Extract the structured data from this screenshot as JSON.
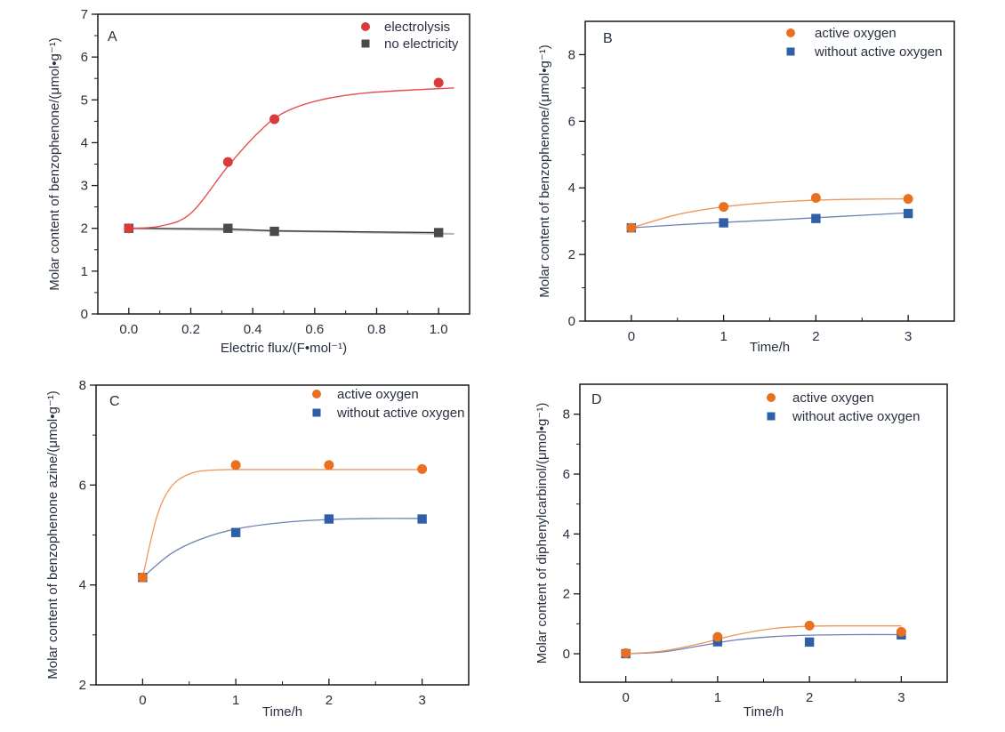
{
  "page": {
    "background": "#ffffff"
  },
  "colors": {
    "frame": "#1a1a1a",
    "text": "#27303f",
    "red": "#d93a3a",
    "red_line": "#e25050",
    "dark_gray": "#4a4a4a",
    "gray_fit_line": "#b6b6b6",
    "gray_connect_line": "#2d2d2d",
    "orange": "#e8701f",
    "orange_line": "#ef9659",
    "blue": "#2f5fa7",
    "blue_line": "#6d83b6"
  },
  "chart_data": [
    {
      "id": "A",
      "type": "scatter",
      "panel_label": "A",
      "xlabel": "Electric flux/(F•mol⁻¹)",
      "ylabel": "Molar content of benzophenone/(μmol•g⁻¹)",
      "xlim": [
        -0.1,
        1.1
      ],
      "ylim": [
        0,
        7
      ],
      "grid": false,
      "legend_position": "top-right-inside",
      "xticks": {
        "values": [
          0,
          0.2,
          0.4,
          0.6,
          0.8,
          1.0
        ],
        "labels": [
          "0.0",
          "0.2",
          "0.4",
          "0.6",
          "0.8",
          "1.0"
        ],
        "minor_step": 0.1
      },
      "yticks": {
        "values": [
          0,
          1,
          2,
          3,
          4,
          5,
          6,
          7
        ],
        "labels": [
          "0",
          "1",
          "2",
          "3",
          "4",
          "5",
          "6",
          "7"
        ],
        "minor_step": 0.5
      },
      "series": [
        {
          "name": "no electricity",
          "marker": "square",
          "color": "#4a4a4a",
          "x": [
            0,
            0.32,
            0.47,
            1.0
          ],
          "y": [
            2.0,
            2.0,
            1.93,
            1.9
          ],
          "lines": [
            {
              "color": "#b6b6b6",
              "width": 2.2,
              "smooth": false,
              "points": [
                [
                  0,
                  2.0
                ],
                [
                  1.05,
                  1.87
                ]
              ]
            },
            {
              "color": "#2d2d2d",
              "width": 1.2,
              "smooth": false,
              "points": [
                [
                  0,
                  2.0
                ],
                [
                  0.32,
                  1.99
                ],
                [
                  0.47,
                  1.94
                ],
                [
                  1.0,
                  1.9
                ]
              ]
            }
          ]
        },
        {
          "name": "electrolysis",
          "marker": "circle",
          "color": "#d93a3a",
          "x": [
            0,
            0.32,
            0.47,
            1.0
          ],
          "y": [
            2.0,
            3.55,
            4.55,
            5.4
          ],
          "lines": [
            {
              "color": "#e25050",
              "width": 1.4,
              "smooth": true,
              "points": [
                [
                  0,
                  2.0
                ],
                [
                  0.1,
                  2.05
                ],
                [
                  0.2,
                  2.35
                ],
                [
                  0.32,
                  3.45
                ],
                [
                  0.42,
                  4.25
                ],
                [
                  0.5,
                  4.7
                ],
                [
                  0.62,
                  5.0
                ],
                [
                  0.78,
                  5.17
                ],
                [
                  1.05,
                  5.28
                ]
              ]
            }
          ]
        }
      ],
      "legend": [
        {
          "label": "electrolysis",
          "marker": "circle",
          "color": "#d93a3a"
        },
        {
          "label": "no electricity",
          "marker": "square",
          "color": "#4a4a4a"
        }
      ]
    },
    {
      "id": "B",
      "type": "scatter",
      "panel_label": "B",
      "xlabel": "Time/h",
      "ylabel": "Molar content of benzophenone/(μmol•g⁻¹)",
      "xlim": [
        -0.5,
        3.5
      ],
      "ylim": [
        0,
        9
      ],
      "grid": false,
      "legend_position": "top-right-inside",
      "xticks": {
        "values": [
          0,
          1,
          2,
          3
        ],
        "labels": [
          "0",
          "1",
          "2",
          "3"
        ],
        "minor_step": 0.5
      },
      "yticks": {
        "values": [
          0,
          2,
          4,
          6,
          8
        ],
        "labels": [
          "0",
          "2",
          "4",
          "6",
          "8"
        ],
        "minor_step": 1
      },
      "series": [
        {
          "name": "without active oxygen",
          "marker": "square",
          "color": "#2f5fa7",
          "x": [
            0,
            1,
            2,
            3
          ],
          "y": [
            2.8,
            2.95,
            3.08,
            3.23
          ],
          "lines": [
            {
              "color": "#6d83b6",
              "width": 1.3,
              "smooth": true,
              "points": [
                [
                  0,
                  2.8
                ],
                [
                  0.75,
                  2.93
                ],
                [
                  1.5,
                  3.03
                ],
                [
                  2.25,
                  3.14
                ],
                [
                  3,
                  3.25
                ]
              ]
            }
          ]
        },
        {
          "name": "active oxygen",
          "marker": "circle",
          "color": "#e8701f",
          "x": [
            0,
            1,
            2,
            3
          ],
          "y": [
            2.8,
            3.43,
            3.7,
            3.67
          ],
          "lines": [
            {
              "color": "#ef9659",
              "width": 1.3,
              "smooth": true,
              "points": [
                [
                  0,
                  2.8
                ],
                [
                  0.5,
                  3.2
                ],
                [
                  1,
                  3.43
                ],
                [
                  1.5,
                  3.56
                ],
                [
                  2,
                  3.63
                ],
                [
                  2.5,
                  3.66
                ],
                [
                  3,
                  3.67
                ]
              ]
            }
          ]
        }
      ],
      "legend": [
        {
          "label": "active oxygen",
          "marker": "circle",
          "color": "#e8701f"
        },
        {
          "label": "without active oxygen",
          "marker": "square",
          "color": "#2f5fa7"
        }
      ]
    },
    {
      "id": "C",
      "type": "scatter",
      "panel_label": "C",
      "xlabel": "Time/h",
      "ylabel": "Molar content of benzophenone azine/(μmol•g⁻¹)",
      "xlim": [
        -0.5,
        3.5
      ],
      "ylim": [
        2,
        8
      ],
      "grid": false,
      "legend_position": "top-right-inside",
      "xticks": {
        "values": [
          0,
          1,
          2,
          3
        ],
        "labels": [
          "0",
          "1",
          "2",
          "3"
        ],
        "minor_step": 0.5
      },
      "yticks": {
        "values": [
          2,
          4,
          6,
          8
        ],
        "labels": [
          "2",
          "4",
          "6",
          "8"
        ],
        "minor_step": 1
      },
      "series": [
        {
          "name": "without active oxygen",
          "marker": "square",
          "color": "#2f5fa7",
          "x": [
            0,
            1,
            2,
            3
          ],
          "y": [
            4.15,
            5.05,
            5.32,
            5.32
          ],
          "lines": [
            {
              "color": "#6d83b6",
              "width": 1.3,
              "smooth": true,
              "points": [
                [
                  0,
                  4.15
                ],
                [
                  0.3,
                  4.62
                ],
                [
                  0.6,
                  4.9
                ],
                [
                  1,
                  5.12
                ],
                [
                  1.5,
                  5.25
                ],
                [
                  2,
                  5.31
                ],
                [
                  2.5,
                  5.33
                ],
                [
                  3,
                  5.33
                ]
              ]
            }
          ]
        },
        {
          "name": "active oxygen",
          "marker": "circle",
          "color": "#e8701f",
          "x": [
            0,
            1,
            2,
            3
          ],
          "y": [
            4.15,
            6.4,
            6.4,
            6.32
          ],
          "lines": [
            {
              "color": "#ef9659",
              "width": 1.3,
              "smooth": true,
              "points": [
                [
                  0,
                  4.15
                ],
                [
                  0.15,
                  5.35
                ],
                [
                  0.3,
                  5.95
                ],
                [
                  0.5,
                  6.22
                ],
                [
                  0.75,
                  6.3
                ],
                [
                  1.2,
                  6.31
                ],
                [
                  2,
                  6.31
                ],
                [
                  3,
                  6.31
                ]
              ]
            }
          ]
        }
      ],
      "legend": [
        {
          "label": "active oxygen",
          "marker": "circle",
          "color": "#e8701f"
        },
        {
          "label": "without active oxygen",
          "marker": "square",
          "color": "#2f5fa7"
        }
      ]
    },
    {
      "id": "D",
      "type": "scatter",
      "panel_label": "D",
      "xlabel": "Time/h",
      "ylabel": "Molar content of diphenylcarbinol/(μmol•g⁻¹)",
      "xlim": [
        -0.5,
        3.5
      ],
      "ylim": [
        -0.95,
        9
      ],
      "grid": false,
      "legend_position": "top-right-inside",
      "xticks": {
        "values": [
          0,
          1,
          2,
          3
        ],
        "labels": [
          "0",
          "1",
          "2",
          "3"
        ],
        "minor_step": 0.5
      },
      "yticks": {
        "values": [
          0,
          2,
          4,
          6,
          8
        ],
        "labels": [
          "0",
          "2",
          "4",
          "6",
          "8"
        ],
        "minor_step": 1
      },
      "series": [
        {
          "name": "without active oxygen",
          "marker": "square",
          "color": "#2f5fa7",
          "x": [
            0,
            1,
            2,
            3
          ],
          "y": [
            0.0,
            0.4,
            0.39,
            0.63
          ],
          "lines": [
            {
              "color": "#6d83b6",
              "width": 1.3,
              "smooth": true,
              "points": [
                [
                  0,
                  0.0
                ],
                [
                  0.4,
                  0.06
                ],
                [
                  0.8,
                  0.26
                ],
                [
                  1.2,
                  0.46
                ],
                [
                  1.6,
                  0.57
                ],
                [
                  2,
                  0.62
                ],
                [
                  2.5,
                  0.64
                ],
                [
                  3,
                  0.64
                ]
              ]
            }
          ]
        },
        {
          "name": "active oxygen",
          "marker": "circle",
          "color": "#e8701f",
          "x": [
            0,
            1,
            2,
            3
          ],
          "y": [
            0.02,
            0.56,
            0.94,
            0.73
          ],
          "lines": [
            {
              "color": "#ef9659",
              "width": 1.3,
              "smooth": true,
              "points": [
                [
                  0,
                  0.0
                ],
                [
                  0.4,
                  0.09
                ],
                [
                  0.8,
                  0.33
                ],
                [
                  1.2,
                  0.63
                ],
                [
                  1.6,
                  0.84
                ],
                [
                  2,
                  0.92
                ],
                [
                  2.5,
                  0.93
                ],
                [
                  3,
                  0.93
                ]
              ]
            }
          ]
        }
      ],
      "legend": [
        {
          "label": "active oxygen",
          "marker": "circle",
          "color": "#e8701f"
        },
        {
          "label": "without active oxygen",
          "marker": "square",
          "color": "#2f5fa7"
        }
      ]
    }
  ]
}
